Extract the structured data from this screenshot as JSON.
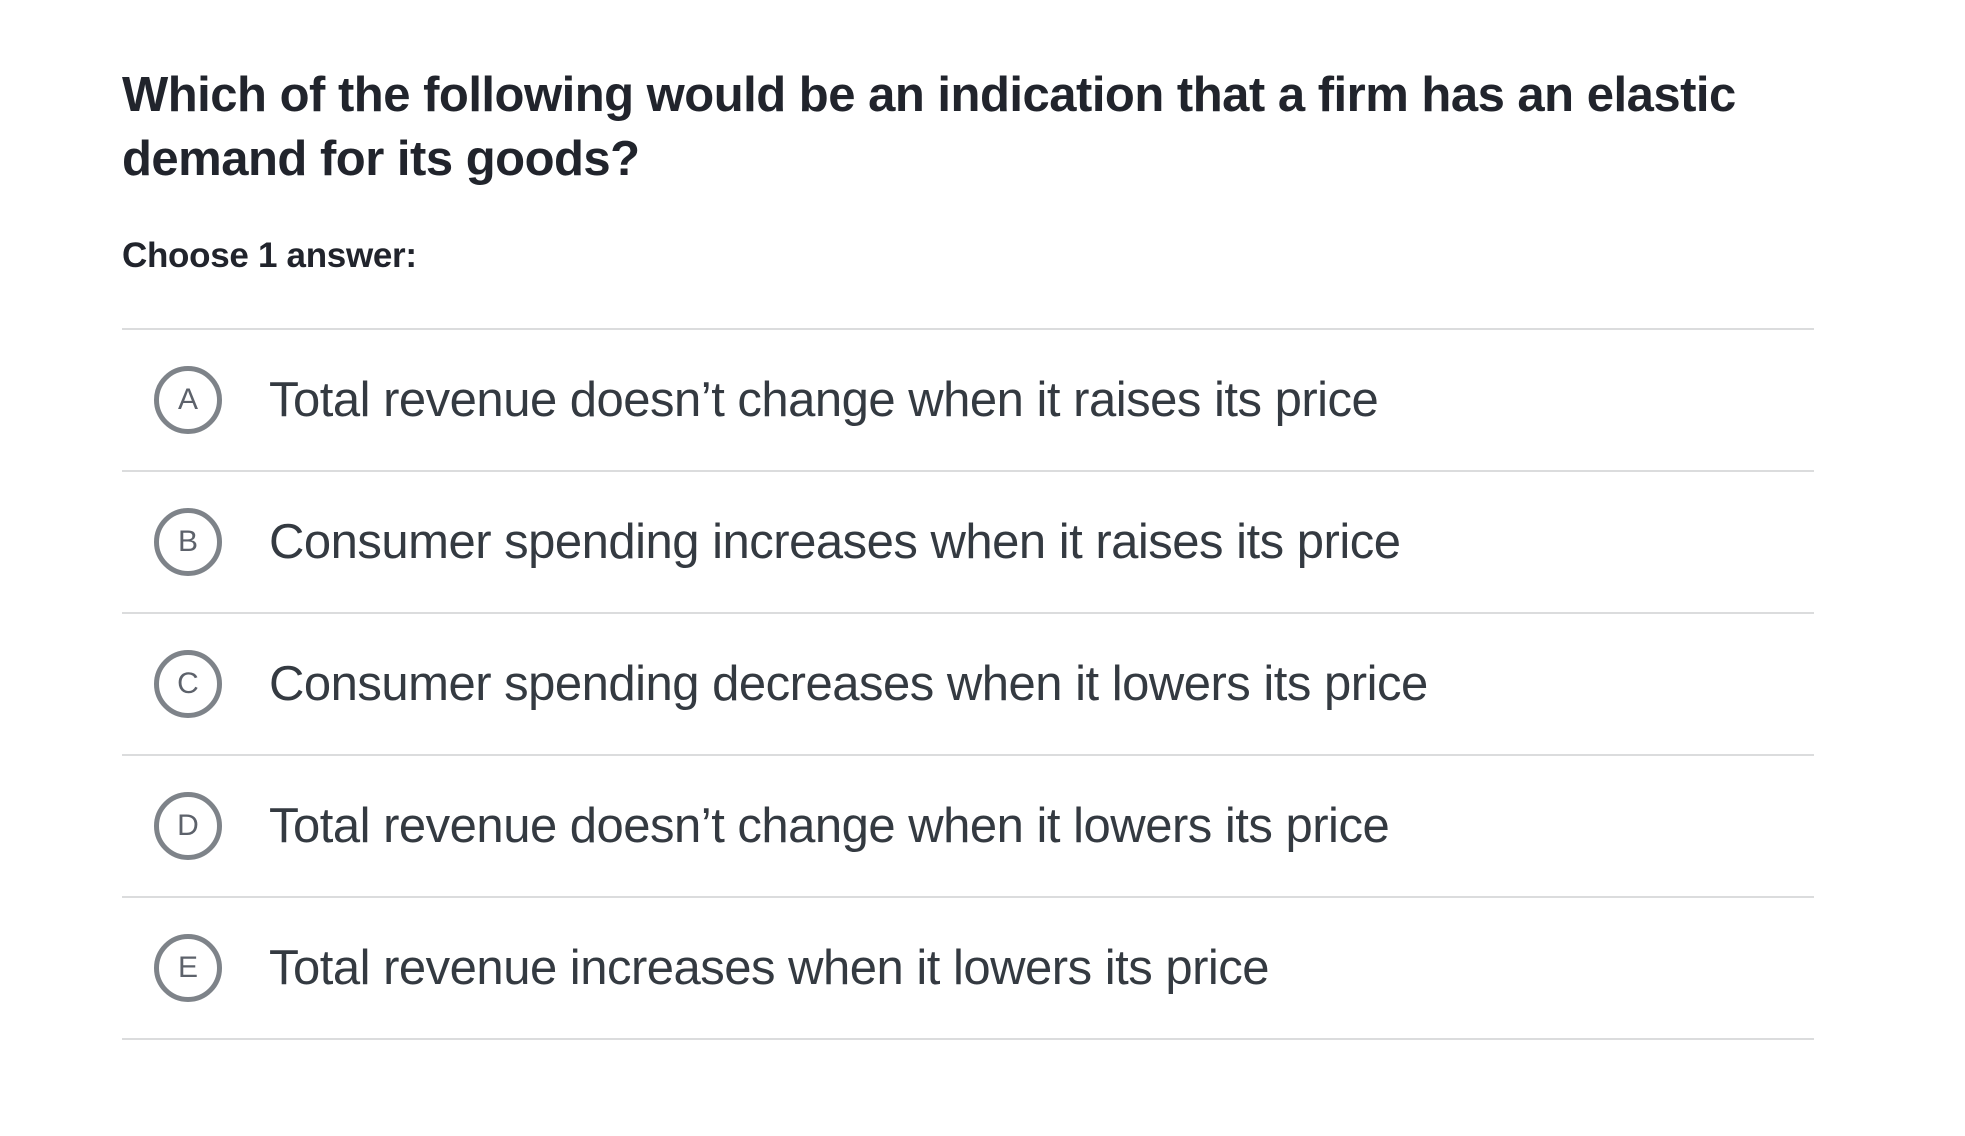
{
  "question": {
    "line1": "Which of the following would be an indication that a firm has an elastic",
    "line2": "demand for its goods?",
    "prompt": "Choose 1 answer:"
  },
  "options": [
    {
      "letter": "A",
      "label": "Total revenue doesn’t change when it raises its price"
    },
    {
      "letter": "B",
      "label": "Consumer spending increases when it raises its price"
    },
    {
      "letter": "C",
      "label": "Consumer spending decreases when it lowers its price"
    },
    {
      "letter": "D",
      "label": "Total revenue doesn’t change when it lowers its price"
    },
    {
      "letter": "E",
      "label": "Total revenue increases when it lowers its price"
    }
  ],
  "colors": {
    "heading_text": "#21242c",
    "option_text": "#343a41",
    "circle_border": "#7e8389",
    "circle_letter": "#5d626b",
    "divider": "#dbdcdd",
    "background": "#ffffff"
  }
}
